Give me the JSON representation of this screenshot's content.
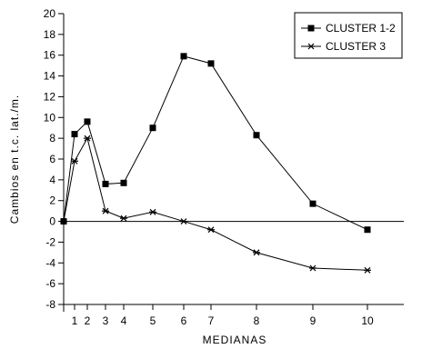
{
  "chart_data": {
    "type": "line",
    "xlabel": "MEDIANAS",
    "ylabel": "Cambios en t.c. lat./m.",
    "xlim": [
      0,
      10.8
    ],
    "ylim": [
      -8,
      20
    ],
    "x_ticks": [
      1,
      2,
      3,
      4,
      5,
      6,
      7,
      8,
      9,
      10
    ],
    "y_ticks": [
      -8,
      -6,
      -4,
      -2,
      0,
      2,
      4,
      6,
      8,
      10,
      12,
      14,
      16,
      18,
      20
    ],
    "reference_line_y": 0,
    "legend_position": "top-right",
    "series": [
      {
        "name": "CLUSTER 1-2",
        "marker": "square",
        "x": [
          0,
          0.5,
          1,
          2,
          3,
          4,
          5,
          6,
          7,
          8,
          9,
          10
        ],
        "y": [
          0,
          8.4,
          9.6,
          3.6,
          3.7,
          9.0,
          15.9,
          15.2,
          8.3,
          1.7,
          -0.8,
          null
        ]
      },
      {
        "name": "CLUSTER 3",
        "marker": "asterisk",
        "x": [
          0,
          0.5,
          1,
          2,
          3,
          4,
          5,
          6,
          7,
          8,
          9,
          10
        ],
        "y": [
          0,
          5.8,
          8.0,
          1.0,
          0.3,
          0.9,
          0.0,
          -0.8,
          -3.0,
          -4.5,
          -4.7,
          null
        ]
      }
    ]
  }
}
